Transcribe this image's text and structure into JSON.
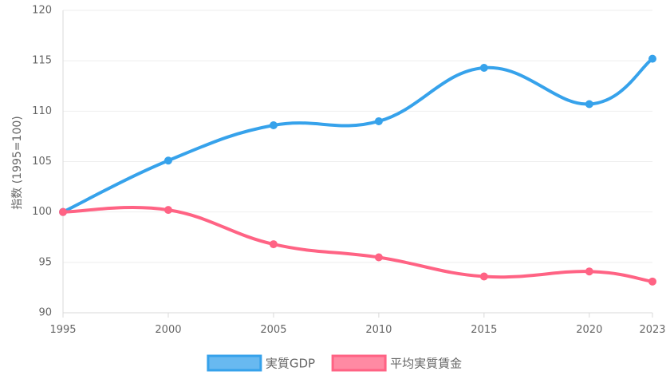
{
  "chart_data": {
    "type": "line",
    "x": [
      1995,
      2000,
      2005,
      2010,
      2015,
      2020,
      2023
    ],
    "xlabel": "",
    "ylabel": "指数 (1995=100)",
    "ylim": [
      90,
      120
    ],
    "yticks": [
      90,
      95,
      100,
      105,
      110,
      115,
      120
    ],
    "grid": true,
    "legend_position": "bottom",
    "series": [
      {
        "name": "実質GDP",
        "color": "#36a2eb",
        "values": [
          100,
          105.1,
          108.6,
          109.0,
          114.3,
          110.7,
          115.2
        ]
      },
      {
        "name": "平均実質賃金",
        "color": "#ff6384",
        "values": [
          100,
          100.2,
          96.8,
          95.5,
          93.6,
          94.1,
          93.1
        ]
      }
    ]
  }
}
